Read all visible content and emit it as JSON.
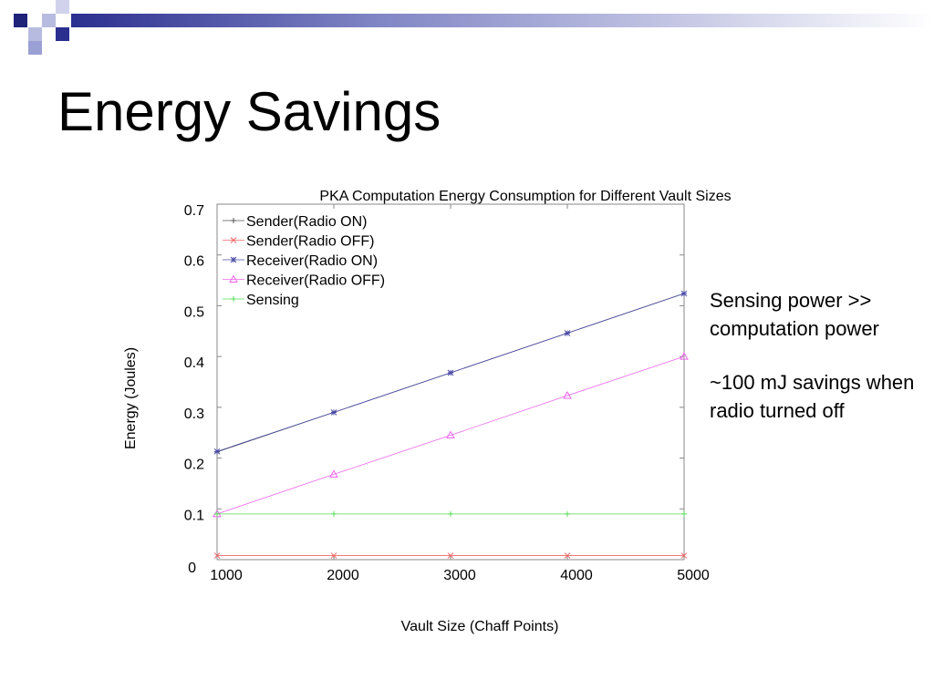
{
  "slide": {
    "title": "Energy Savings",
    "notes": [
      "Sensing power >> computation power",
      "~100 mJ savings when radio turned off"
    ],
    "accent_color": "#2b2f8f"
  },
  "chart_data": {
    "type": "line",
    "title": "PKA Computation Energy Consumption for Different Vault Sizes",
    "xlabel": "Vault Size (Chaff Points)",
    "ylabel": "Energy (Joules)",
    "xlim": [
      1000,
      5000
    ],
    "ylim": [
      0,
      0.7
    ],
    "xticks": [
      "1000",
      "2000",
      "3000",
      "4000",
      "5000"
    ],
    "yticks": [
      "0",
      "0.1",
      "0.2",
      "0.3",
      "0.4",
      "0.5",
      "0.6",
      "0.7"
    ],
    "legend_position": "top-left",
    "grid": false,
    "x": [
      1000,
      2000,
      3000,
      4000,
      5000
    ],
    "series": [
      {
        "name": "Sender(Radio ON)",
        "color": "#555555",
        "marker": "+",
        "values": [
          0.212,
          0.29,
          0.368,
          0.446,
          0.524
        ]
      },
      {
        "name": "Sender(Radio OFF)",
        "color": "#ee6666",
        "marker": "x",
        "values": [
          0.008,
          0.008,
          0.008,
          0.008,
          0.008
        ]
      },
      {
        "name": "Receiver(Radio ON)",
        "color": "#4a4aa8",
        "marker": "*",
        "values": [
          0.213,
          0.29,
          0.368,
          0.446,
          0.524
        ]
      },
      {
        "name": "Receiver(Radio OFF)",
        "color": "#ee66ee",
        "marker": "triangle",
        "values": [
          0.09,
          0.168,
          0.245,
          0.323,
          0.4
        ]
      },
      {
        "name": "Sensing",
        "color": "#55dd55",
        "marker": "+",
        "values": [
          0.09,
          0.09,
          0.09,
          0.09,
          0.09
        ]
      }
    ]
  }
}
